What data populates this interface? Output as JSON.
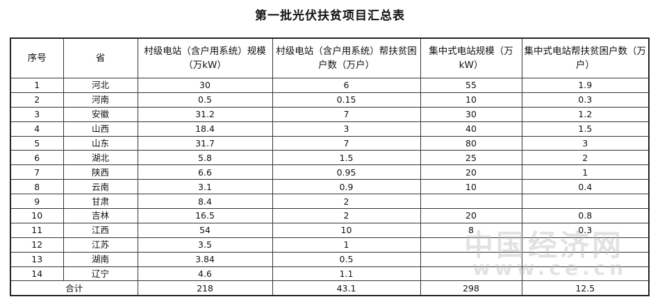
{
  "title": "第一批光伏扶贫项目汇总表",
  "headers": [
    "序号",
    "省",
    "村级电站（含户用系统）规模（万kW）",
    "村级电站（含户用系统）帮扶贫困户数（万户）",
    "集中式电站规模（万kW）",
    "集中式电站帮扶贫困户数（万户）"
  ],
  "rows": [
    [
      "1",
      "河北",
      "30",
      "6",
      "55",
      "1.9"
    ],
    [
      "2",
      "河南",
      "0.5",
      "0.15",
      "10",
      "0.3"
    ],
    [
      "3",
      "安徽",
      "31.2",
      "7",
      "30",
      "1.2"
    ],
    [
      "4",
      "山西",
      "18.4",
      "3",
      "40",
      "1.5"
    ],
    [
      "5",
      "山东",
      "31.7",
      "7",
      "80",
      "3"
    ],
    [
      "6",
      "湖北",
      "5.8",
      "1.5",
      "25",
      "2"
    ],
    [
      "7",
      "陕西",
      "6.6",
      "0.95",
      "20",
      "1"
    ],
    [
      "8",
      "云南",
      "3.1",
      "0.9",
      "10",
      "0.4"
    ],
    [
      "9",
      "甘肃",
      "8.4",
      "2",
      "",
      ""
    ],
    [
      "10",
      "吉林",
      "16.5",
      "2",
      "20",
      "0.8"
    ],
    [
      "11",
      "江西",
      "54",
      "10",
      "8",
      "0.3"
    ],
    [
      "12",
      "江苏",
      "3.5",
      "1",
      "",
      ""
    ],
    [
      "13",
      "湖南",
      "3.84",
      "0.5",
      "",
      ""
    ],
    [
      "14",
      "辽宁",
      "4.6",
      "1.1",
      "",
      ""
    ]
  ],
  "total": {
    "label": "合计",
    "values": [
      "218",
      "43.1",
      "298",
      "12.5"
    ]
  },
  "watermark": {
    "name": "中国经济网",
    "url": "www.ce.cn"
  }
}
